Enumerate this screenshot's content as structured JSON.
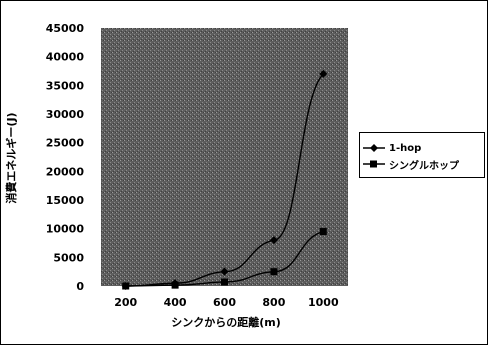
{
  "chart_data": {
    "type": "line",
    "title": "",
    "xlabel": "シンクからの距離(m)",
    "ylabel": "消費エネルギー(J)",
    "x": [
      200,
      400,
      600,
      800,
      1000
    ],
    "xlim": [
      100,
      1100
    ],
    "ylim": [
      0,
      45000
    ],
    "x_ticks": [
      "200",
      "400",
      "600",
      "800",
      "1000"
    ],
    "y_ticks": [
      "0",
      "5000",
      "10000",
      "15000",
      "20000",
      "25000",
      "30000",
      "35000",
      "40000",
      "45000"
    ],
    "series": [
      {
        "name": "1-hop",
        "marker": "diamond",
        "values": [
          0,
          500,
          2500,
          8000,
          37000
        ]
      },
      {
        "name": "シングルホップ",
        "marker": "square",
        "values": [
          0,
          150,
          700,
          2500,
          9500
        ]
      }
    ],
    "legend_position": "right",
    "grid": false
  }
}
